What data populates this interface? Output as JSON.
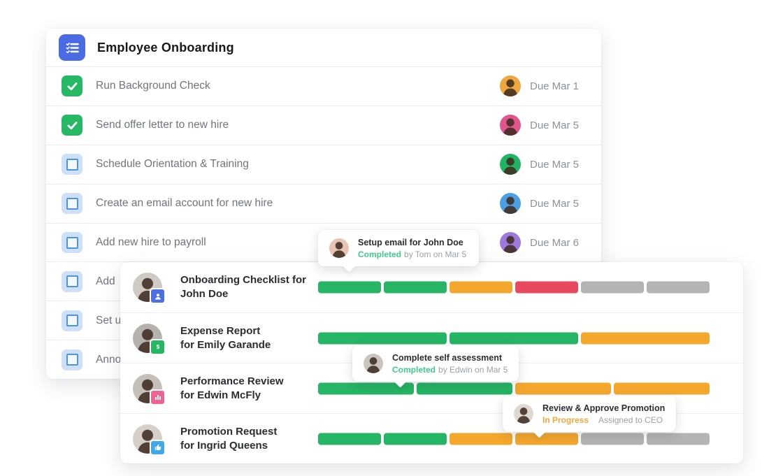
{
  "checklist_card": {
    "title": "Employee Onboarding",
    "header_icon": "checklist-icon",
    "header_icon_color": "#4b6be4",
    "checked_color": "#26b864",
    "unchecked_color": "#cde0f8",
    "items": [
      {
        "label": "Run Background Check",
        "checked": true,
        "due": "Due Mar 1",
        "avatar_color": "#efa73f"
      },
      {
        "label": "Send offer letter to new hire",
        "checked": true,
        "due": "Due Mar 5",
        "avatar_color": "#e0568c"
      },
      {
        "label": "Schedule Orientation & Training",
        "checked": false,
        "due": "Due Mar 5",
        "avatar_color": "#22b465"
      },
      {
        "label": "Create an email account for new hire",
        "checked": false,
        "due": "Due Mar 5",
        "avatar_color": "#4b9fe3"
      },
      {
        "label": "Add new hire to payroll",
        "checked": false,
        "due": "Due Mar 6",
        "avatar_color": "#9d79dd"
      },
      {
        "label": "Add",
        "checked": false,
        "due": null,
        "avatar_color": null
      },
      {
        "label": "Set u",
        "checked": false,
        "due": null,
        "avatar_color": null
      },
      {
        "label": "Anno",
        "checked": false,
        "due": null,
        "avatar_color": null
      }
    ]
  },
  "workflow_card": {
    "rows": [
      {
        "title_line1": "Onboarding Checklist for",
        "title_line2": "John Doe",
        "badge_icon": "person-badge-icon",
        "badge_color": "#4d6fe3",
        "avatar_bg": "#cfcac4",
        "segments": [
          "green",
          "green",
          "orange",
          "red",
          "gray",
          "gray"
        ]
      },
      {
        "title_line1": "Expense Report",
        "title_line2": "for Emily Garande",
        "badge_icon": "dollar-badge-icon",
        "badge_color": "#27b763",
        "avatar_bg": "#b5b2ae",
        "segments": [
          "green",
          "green",
          "orange"
        ]
      },
      {
        "title_line1": "Performance Review",
        "title_line2": "for Edwin McFly",
        "badge_icon": "chart-badge-icon",
        "badge_color": "#ee6392",
        "avatar_bg": "#c4bfb9",
        "segments": [
          "green",
          "green",
          "orange",
          "orange"
        ]
      },
      {
        "title_line1": "Promotion Request",
        "title_line2": "for Ingrid Queens",
        "badge_icon": "thumbs-up-badge-icon",
        "badge_color": "#3fa9e9",
        "avatar_bg": "#d6cfc9",
        "segments": [
          "green",
          "green",
          "orange",
          "orange",
          "gray",
          "gray"
        ]
      }
    ]
  },
  "segment_colors": {
    "green": "#25b564",
    "orange": "#f4a72d",
    "red": "#e8495e",
    "gray": "#b4b4b4"
  },
  "tooltips": [
    {
      "title": "Setup email for John Doe",
      "status": "Completed",
      "status_color": "#41c98e",
      "detail": "by Tom on Mar 5",
      "avatar_bg": "#e9c3b5",
      "wide_gap": false
    },
    {
      "title": "Complete self assessment",
      "status": "Completed",
      "status_color": "#41c98e",
      "detail": "by Edwin on Mar 5",
      "avatar_bg": "#c9c4bd",
      "wide_gap": false
    },
    {
      "title": "Review & Approve Promotion",
      "status": "In Progress",
      "status_color": "#f2a63b",
      "detail": "Assigned to CEO",
      "avatar_bg": "#ded8d2",
      "wide_gap": true
    }
  ]
}
